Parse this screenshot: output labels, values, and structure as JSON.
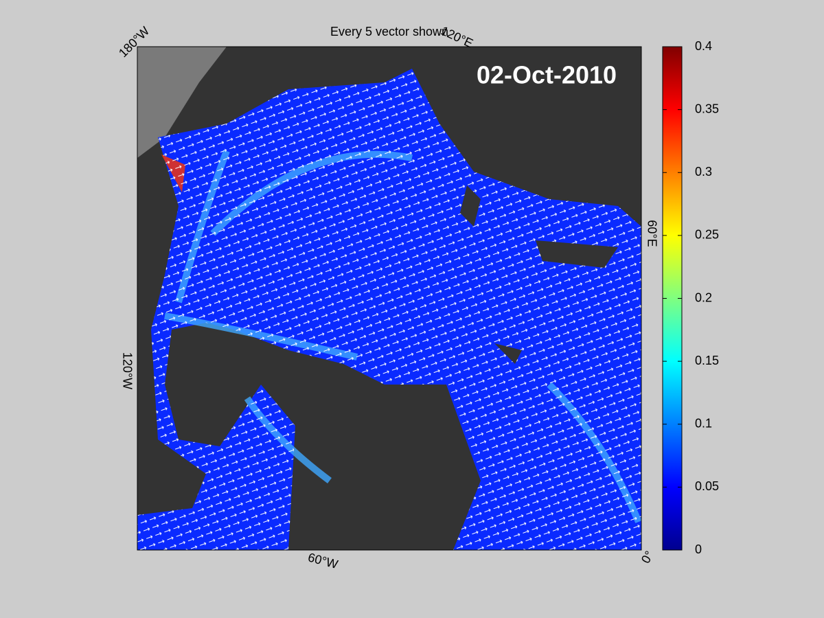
{
  "chart_data": {
    "type": "map",
    "title": "Every 5 vector shown",
    "date_label": "02-Oct-2010",
    "map_labels": [
      "180°W",
      "120°E",
      "60°E",
      "0°",
      "60°W",
      "120°W"
    ],
    "colorbar": {
      "clim": [
        0,
        0.4
      ],
      "ticks": [
        0,
        0.05,
        0.1,
        0.15,
        0.2,
        0.25,
        0.3,
        0.35,
        0.4
      ]
    }
  }
}
